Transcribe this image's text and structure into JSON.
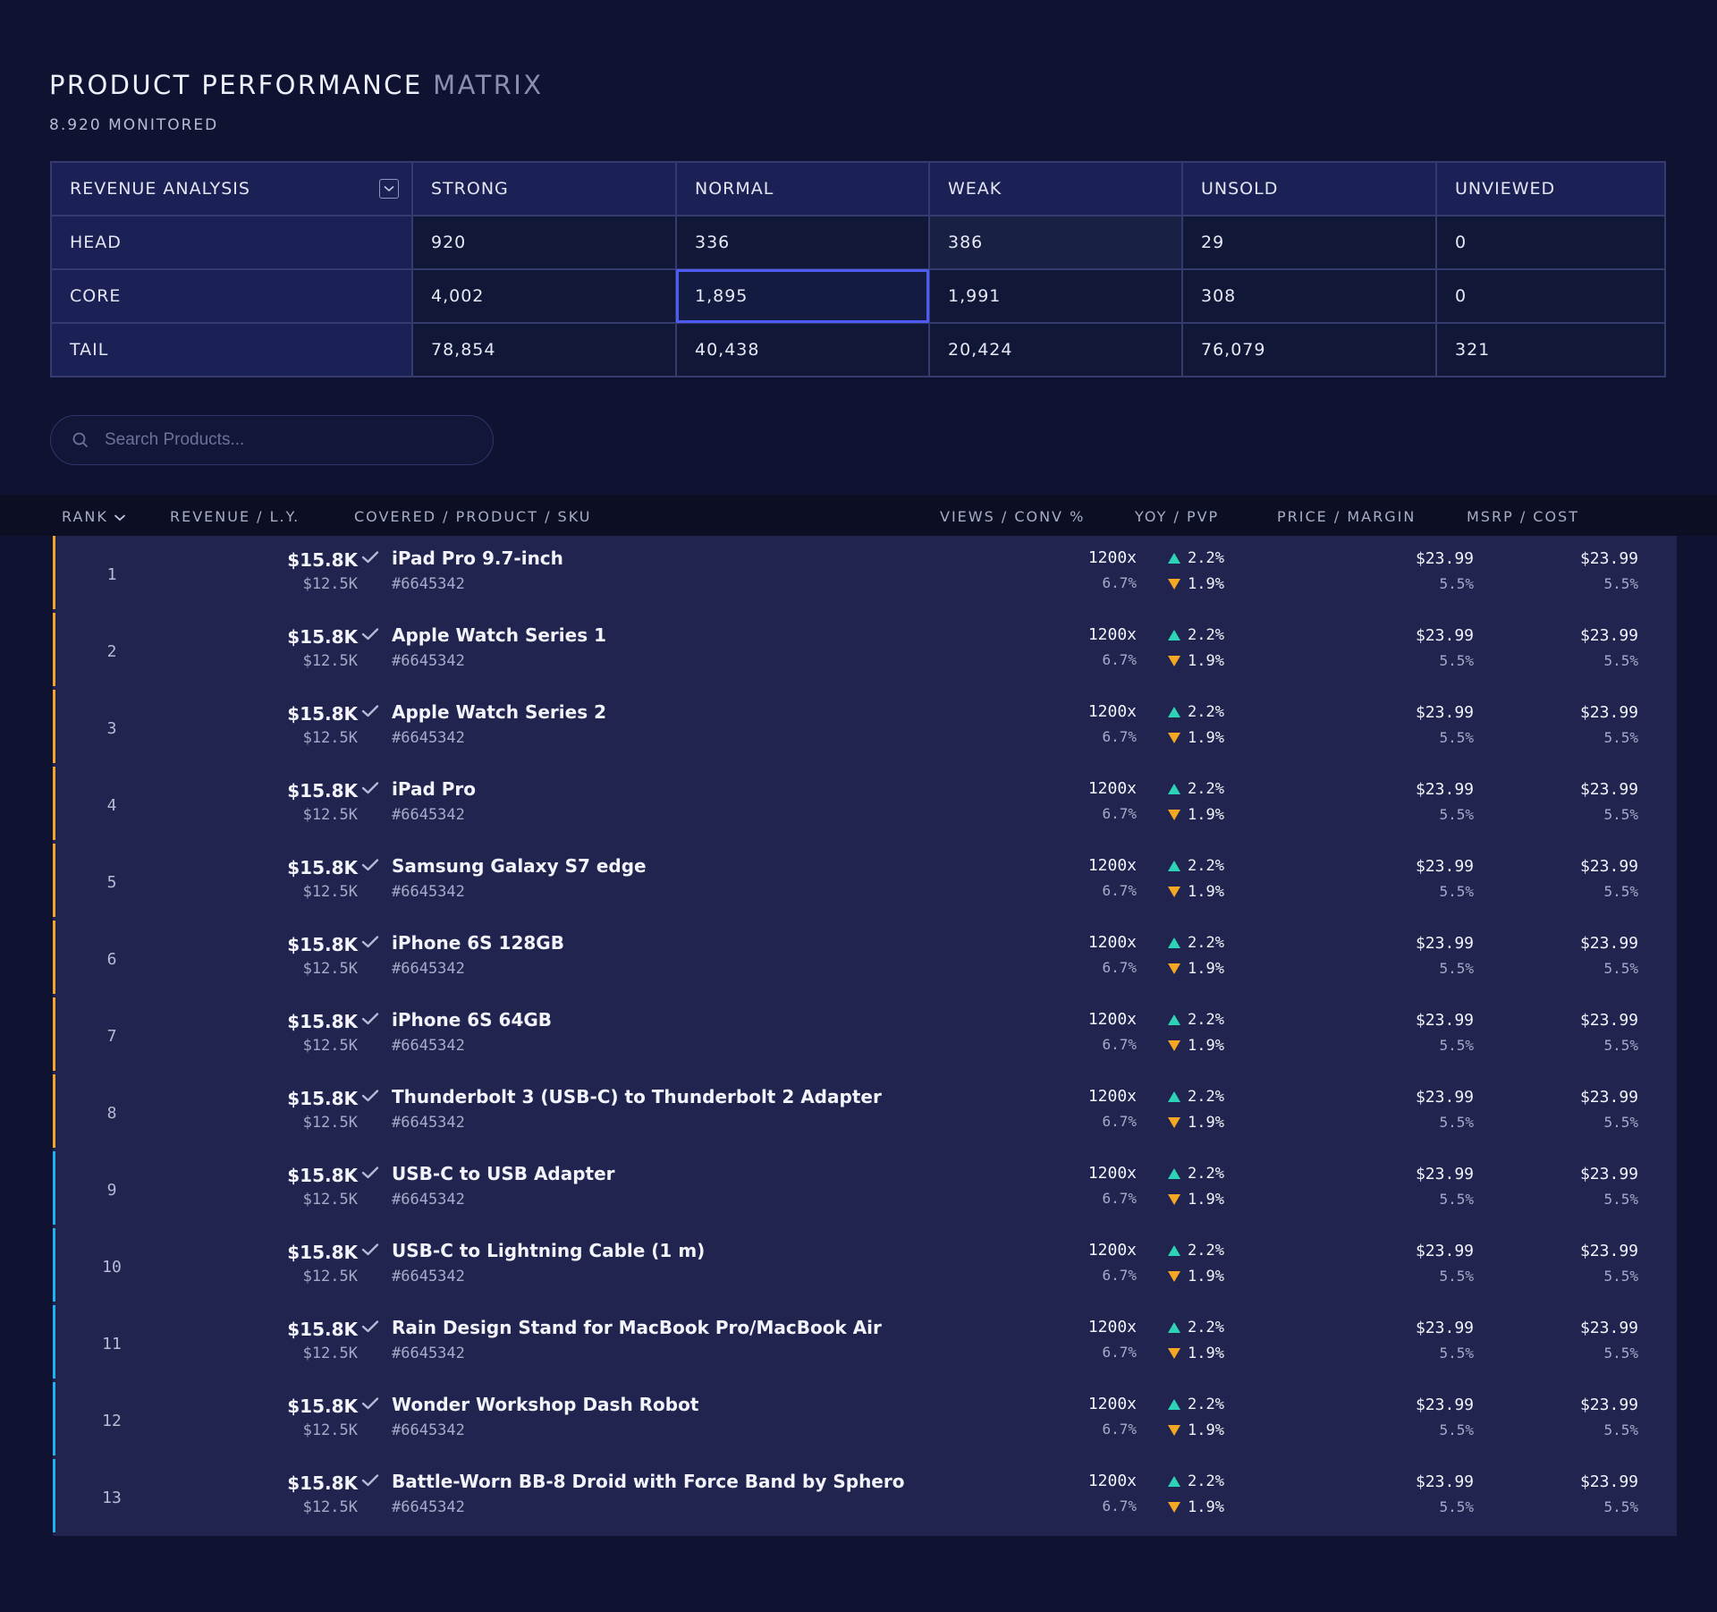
{
  "header": {
    "title_main": "PRODUCT PERFORMANCE",
    "title_muted": "MATRIX",
    "subtitle": "8.920 MONITORED"
  },
  "matrix": {
    "corner_label": "REVENUE ANALYSIS",
    "columns": [
      "STRONG",
      "NORMAL",
      "WEAK",
      "UNSOLD",
      "UNVIEWED"
    ],
    "rows": [
      {
        "label": "HEAD",
        "values": [
          "920",
          "336",
          "386",
          "29",
          "0"
        ]
      },
      {
        "label": "CORE",
        "values": [
          "4,002",
          "1,895",
          "1,991",
          "308",
          "0"
        ]
      },
      {
        "label": "TAIL",
        "values": [
          "78,854",
          "40,438",
          "20,424",
          "76,079",
          "321"
        ]
      }
    ],
    "selected_cell": {
      "row": 1,
      "col": 1
    }
  },
  "search": {
    "placeholder": "Search Products..."
  },
  "list": {
    "columns": {
      "rank": "RANK",
      "revenue": "REVENUE / L.Y.",
      "product": "COVERED / PRODUCT / SKU",
      "views": "VIEWS / CONV %",
      "yoy": "YOY / PVP",
      "price": "PRICE / MARGIN",
      "msrp": "MSRP / COST"
    },
    "colors": {
      "up": "#2ed3b7",
      "down": "#f5a623",
      "orange_bar": "#f5a623",
      "blue_bar": "#1cb3f0"
    },
    "rows": [
      {
        "rank": "1",
        "revenue": "$15.8K",
        "ly": "$12.5K",
        "name": "iPad Pro 9.7-inch",
        "sku": "#6645342",
        "views": "1200x",
        "conv": "6.7%",
        "yoy": "2.2%",
        "pvp": "1.9%",
        "price": "$23.99",
        "margin": "5.5%",
        "msrp": "$23.99",
        "cost": "5.5%",
        "group": "orange"
      },
      {
        "rank": "2",
        "revenue": "$15.8K",
        "ly": "$12.5K",
        "name": "Apple Watch Series 1",
        "sku": "#6645342",
        "views": "1200x",
        "conv": "6.7%",
        "yoy": "2.2%",
        "pvp": "1.9%",
        "price": "$23.99",
        "margin": "5.5%",
        "msrp": "$23.99",
        "cost": "5.5%",
        "group": "orange"
      },
      {
        "rank": "3",
        "revenue": "$15.8K",
        "ly": "$12.5K",
        "name": "Apple Watch Series 2",
        "sku": "#6645342",
        "views": "1200x",
        "conv": "6.7%",
        "yoy": "2.2%",
        "pvp": "1.9%",
        "price": "$23.99",
        "margin": "5.5%",
        "msrp": "$23.99",
        "cost": "5.5%",
        "group": "orange"
      },
      {
        "rank": "4",
        "revenue": "$15.8K",
        "ly": "$12.5K",
        "name": "iPad Pro",
        "sku": "#6645342",
        "views": "1200x",
        "conv": "6.7%",
        "yoy": "2.2%",
        "pvp": "1.9%",
        "price": "$23.99",
        "margin": "5.5%",
        "msrp": "$23.99",
        "cost": "5.5%",
        "group": "orange"
      },
      {
        "rank": "5",
        "revenue": "$15.8K",
        "ly": "$12.5K",
        "name": "Samsung Galaxy S7 edge",
        "sku": "#6645342",
        "views": "1200x",
        "conv": "6.7%",
        "yoy": "2.2%",
        "pvp": "1.9%",
        "price": "$23.99",
        "margin": "5.5%",
        "msrp": "$23.99",
        "cost": "5.5%",
        "group": "orange"
      },
      {
        "rank": "6",
        "revenue": "$15.8K",
        "ly": "$12.5K",
        "name": "iPhone 6S 128GB",
        "sku": "#6645342",
        "views": "1200x",
        "conv": "6.7%",
        "yoy": "2.2%",
        "pvp": "1.9%",
        "price": "$23.99",
        "margin": "5.5%",
        "msrp": "$23.99",
        "cost": "5.5%",
        "group": "orange"
      },
      {
        "rank": "7",
        "revenue": "$15.8K",
        "ly": "$12.5K",
        "name": "iPhone 6S 64GB",
        "sku": "#6645342",
        "views": "1200x",
        "conv": "6.7%",
        "yoy": "2.2%",
        "pvp": "1.9%",
        "price": "$23.99",
        "margin": "5.5%",
        "msrp": "$23.99",
        "cost": "5.5%",
        "group": "orange"
      },
      {
        "rank": "8",
        "revenue": "$15.8K",
        "ly": "$12.5K",
        "name": "Thunderbolt 3 (USB-C) to Thunderbolt 2 Adapter",
        "sku": "#6645342",
        "views": "1200x",
        "conv": "6.7%",
        "yoy": "2.2%",
        "pvp": "1.9%",
        "price": "$23.99",
        "margin": "5.5%",
        "msrp": "$23.99",
        "cost": "5.5%",
        "group": "orange"
      },
      {
        "rank": "9",
        "revenue": "$15.8K",
        "ly": "$12.5K",
        "name": "USB-C to USB Adapter",
        "sku": "#6645342",
        "views": "1200x",
        "conv": "6.7%",
        "yoy": "2.2%",
        "pvp": "1.9%",
        "price": "$23.99",
        "margin": "5.5%",
        "msrp": "$23.99",
        "cost": "5.5%",
        "group": "blue"
      },
      {
        "rank": "10",
        "revenue": "$15.8K",
        "ly": "$12.5K",
        "name": "USB-C to Lightning Cable (1 m)",
        "sku": "#6645342",
        "views": "1200x",
        "conv": "6.7%",
        "yoy": "2.2%",
        "pvp": "1.9%",
        "price": "$23.99",
        "margin": "5.5%",
        "msrp": "$23.99",
        "cost": "5.5%",
        "group": "blue"
      },
      {
        "rank": "11",
        "revenue": "$15.8K",
        "ly": "$12.5K",
        "name": "Rain Design Stand for MacBook Pro/MacBook Air",
        "sku": "#6645342",
        "views": "1200x",
        "conv": "6.7%",
        "yoy": "2.2%",
        "pvp": "1.9%",
        "price": "$23.99",
        "margin": "5.5%",
        "msrp": "$23.99",
        "cost": "5.5%",
        "group": "blue"
      },
      {
        "rank": "12",
        "revenue": "$15.8K",
        "ly": "$12.5K",
        "name": "Wonder Workshop Dash Robot",
        "sku": "#6645342",
        "views": "1200x",
        "conv": "6.7%",
        "yoy": "2.2%",
        "pvp": "1.9%",
        "price": "$23.99",
        "margin": "5.5%",
        "msrp": "$23.99",
        "cost": "5.5%",
        "group": "blue"
      },
      {
        "rank": "13",
        "revenue": "$15.8K",
        "ly": "$12.5K",
        "name": "Battle-Worn BB-8 Droid with Force Band by Sphero",
        "sku": "#6645342",
        "views": "1200x",
        "conv": "6.7%",
        "yoy": "2.2%",
        "pvp": "1.9%",
        "price": "$23.99",
        "margin": "5.5%",
        "msrp": "$23.99",
        "cost": "5.5%",
        "group": "blue"
      }
    ]
  }
}
